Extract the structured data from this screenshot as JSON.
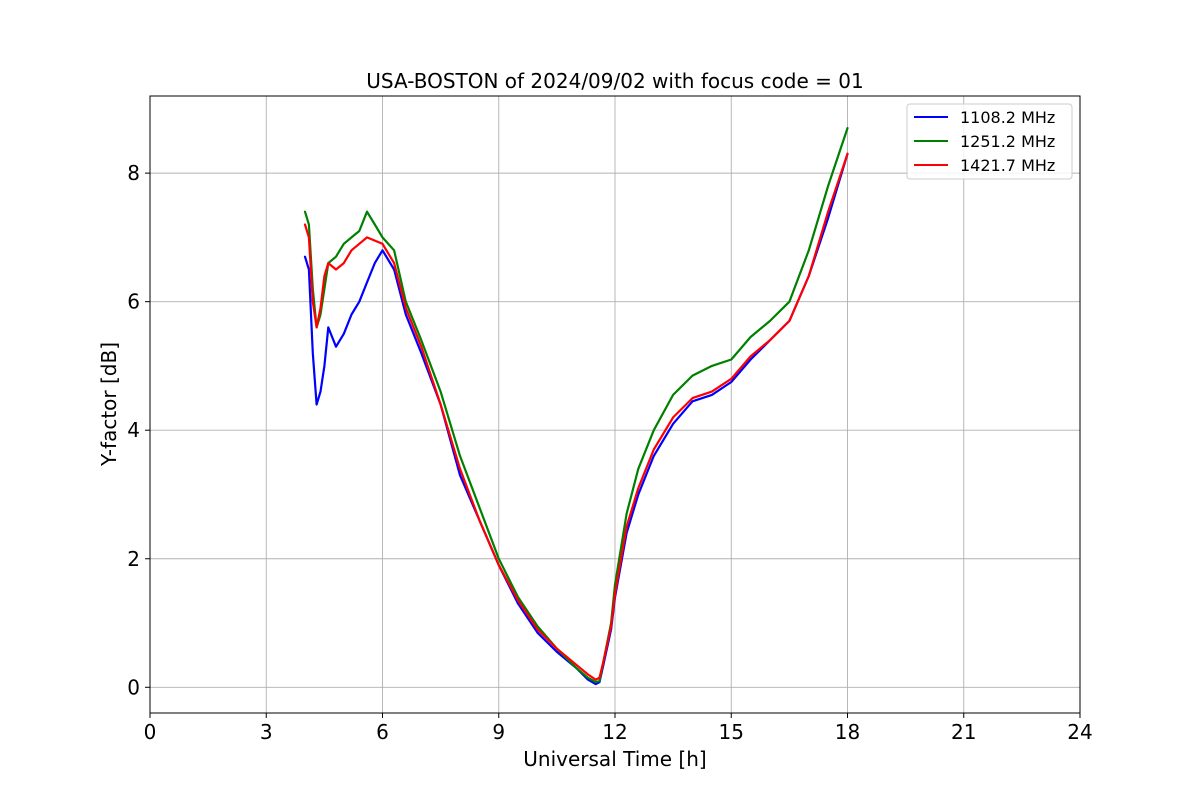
{
  "chart_data": {
    "type": "line",
    "title": "USA-BOSTON of 2024/09/02 with focus code = 01",
    "xlabel": "Universal Time [h]",
    "ylabel": "Y-factor [dB]",
    "xlim": [
      0,
      24
    ],
    "ylim": [
      -0.4,
      9.2
    ],
    "xticks": [
      0,
      3,
      6,
      9,
      12,
      15,
      18,
      21,
      24
    ],
    "xtick_labels": [
      "0",
      "3",
      "6",
      "9",
      "12",
      "15",
      "18",
      "21",
      "24"
    ],
    "yticks": [
      0,
      2,
      4,
      6,
      8
    ],
    "ytick_labels": [
      "0",
      "2",
      "4",
      "6",
      "8"
    ],
    "grid": true,
    "legend_position": "top-right",
    "series": [
      {
        "name": "1108.2 MHz",
        "color": "#0000ff",
        "x": [
          4.0,
          4.1,
          4.2,
          4.3,
          4.4,
          4.5,
          4.6,
          4.8,
          5.0,
          5.2,
          5.4,
          5.6,
          5.8,
          6.0,
          6.3,
          6.6,
          7.0,
          7.5,
          8.0,
          8.5,
          9.0,
          9.5,
          10.0,
          10.5,
          11.0,
          11.3,
          11.5,
          11.6,
          11.7,
          11.9,
          12.0,
          12.3,
          12.6,
          13.0,
          13.5,
          14.0,
          14.5,
          15.0,
          15.5,
          16.0,
          16.5,
          17.0,
          17.5,
          18.0
        ],
        "y": [
          6.7,
          6.5,
          5.2,
          4.4,
          4.6,
          5.0,
          5.6,
          5.3,
          5.5,
          5.8,
          6.0,
          6.3,
          6.6,
          6.8,
          6.5,
          5.8,
          5.2,
          4.4,
          3.3,
          2.6,
          1.9,
          1.3,
          0.85,
          0.55,
          0.3,
          0.12,
          0.05,
          0.08,
          0.35,
          0.9,
          1.4,
          2.4,
          3.0,
          3.6,
          4.1,
          4.45,
          4.55,
          4.75,
          5.1,
          5.4,
          5.7,
          6.4,
          7.3,
          8.3
        ]
      },
      {
        "name": "1251.2 MHz",
        "color": "#008000",
        "x": [
          4.0,
          4.1,
          4.2,
          4.3,
          4.4,
          4.5,
          4.6,
          4.8,
          5.0,
          5.2,
          5.4,
          5.6,
          5.8,
          6.0,
          6.3,
          6.6,
          7.0,
          7.5,
          8.0,
          8.5,
          9.0,
          9.5,
          10.0,
          10.5,
          11.0,
          11.3,
          11.5,
          11.6,
          11.7,
          11.9,
          12.0,
          12.3,
          12.6,
          13.0,
          13.5,
          14.0,
          14.5,
          15.0,
          15.5,
          16.0,
          16.5,
          17.0,
          17.5,
          18.0
        ],
        "y": [
          7.4,
          7.2,
          6.2,
          5.6,
          5.8,
          6.2,
          6.6,
          6.7,
          6.9,
          7.0,
          7.1,
          7.4,
          7.2,
          7.0,
          6.8,
          6.0,
          5.4,
          4.6,
          3.6,
          2.8,
          2.0,
          1.4,
          0.95,
          0.6,
          0.3,
          0.15,
          0.08,
          0.1,
          0.4,
          1.0,
          1.6,
          2.7,
          3.4,
          4.0,
          4.55,
          4.85,
          5.0,
          5.1,
          5.45,
          5.7,
          6.0,
          6.8,
          7.8,
          8.7
        ]
      },
      {
        "name": "1421.7 MHz",
        "color": "#ff0000",
        "x": [
          4.0,
          4.1,
          4.2,
          4.3,
          4.4,
          4.5,
          4.6,
          4.8,
          5.0,
          5.2,
          5.4,
          5.6,
          5.8,
          6.0,
          6.3,
          6.6,
          7.0,
          7.5,
          8.0,
          8.5,
          9.0,
          9.5,
          10.0,
          10.5,
          11.0,
          11.3,
          11.5,
          11.6,
          11.7,
          11.9,
          12.0,
          12.3,
          12.6,
          13.0,
          13.5,
          14.0,
          14.5,
          15.0,
          15.5,
          16.0,
          16.5,
          17.0,
          17.5,
          18.0
        ],
        "y": [
          7.2,
          7.0,
          6.0,
          5.6,
          5.9,
          6.4,
          6.6,
          6.5,
          6.6,
          6.8,
          6.9,
          7.0,
          6.95,
          6.9,
          6.6,
          5.9,
          5.3,
          4.4,
          3.4,
          2.6,
          1.9,
          1.35,
          0.9,
          0.6,
          0.35,
          0.2,
          0.12,
          0.15,
          0.4,
          0.95,
          1.45,
          2.5,
          3.1,
          3.7,
          4.2,
          4.5,
          4.6,
          4.8,
          5.15,
          5.4,
          5.7,
          6.4,
          7.4,
          8.3
        ]
      }
    ]
  }
}
